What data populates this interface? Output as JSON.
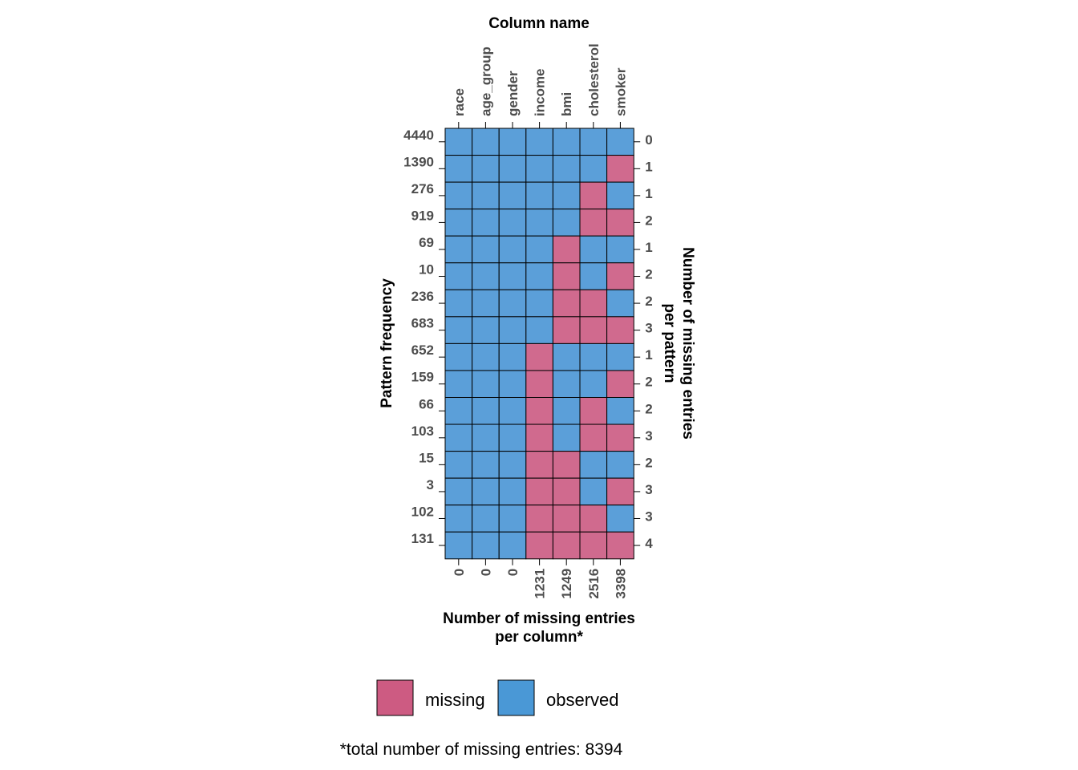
{
  "chart_data": {
    "type": "heatmap",
    "title": "Column name",
    "xlabel_top": "Column name",
    "xlabel_bottom": [
      "Number of missing entries",
      "per column*"
    ],
    "ylabel_left": "Pattern frequency",
    "ylabel_right": [
      "Number of missing entries",
      "per pattern"
    ],
    "columns": [
      "race",
      "age_group",
      "gender",
      "income",
      "bmi",
      "cholesterol",
      "smoker"
    ],
    "missing_per_column": [
      "0",
      "0",
      "0",
      "1231",
      "1249",
      "2516",
      "3398"
    ],
    "pattern_frequency": [
      "4440",
      "1390",
      "276",
      "919",
      "69",
      "10",
      "236",
      "683",
      "652",
      "159",
      "66",
      "103",
      "15",
      "3",
      "102",
      "131"
    ],
    "missing_per_pattern": [
      "0",
      "1",
      "1",
      "2",
      "1",
      "2",
      "2",
      "3",
      "1",
      "2",
      "2",
      "3",
      "2",
      "3",
      "3",
      "4"
    ],
    "matrix": [
      [
        0,
        0,
        0,
        0,
        0,
        0,
        0
      ],
      [
        0,
        0,
        0,
        0,
        0,
        0,
        1
      ],
      [
        0,
        0,
        0,
        0,
        0,
        1,
        0
      ],
      [
        0,
        0,
        0,
        0,
        0,
        1,
        1
      ],
      [
        0,
        0,
        0,
        0,
        1,
        0,
        0
      ],
      [
        0,
        0,
        0,
        0,
        1,
        0,
        1
      ],
      [
        0,
        0,
        0,
        0,
        1,
        1,
        0
      ],
      [
        0,
        0,
        0,
        0,
        1,
        1,
        1
      ],
      [
        0,
        0,
        0,
        1,
        0,
        0,
        0
      ],
      [
        0,
        0,
        0,
        1,
        0,
        0,
        1
      ],
      [
        0,
        0,
        0,
        1,
        0,
        1,
        0
      ],
      [
        0,
        0,
        0,
        1,
        0,
        1,
        1
      ],
      [
        0,
        0,
        0,
        1,
        1,
        0,
        0
      ],
      [
        0,
        0,
        0,
        1,
        1,
        0,
        1
      ],
      [
        0,
        0,
        0,
        1,
        1,
        1,
        0
      ],
      [
        0,
        0,
        0,
        1,
        1,
        1,
        1
      ]
    ],
    "legend": [
      {
        "label": "missing",
        "color": "#cd5b82"
      },
      {
        "label": "observed",
        "color": "#4a98d6"
      }
    ],
    "colors": {
      "missing": "#d06a8e",
      "observed": "#5b9fd9",
      "grid": "#000000"
    },
    "footnote": "*total number of missing entries: 8394"
  }
}
